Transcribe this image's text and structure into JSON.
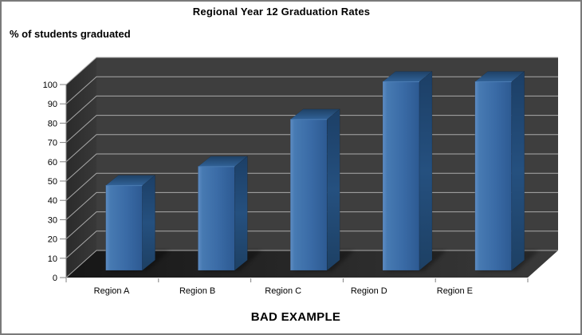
{
  "chart_data": {
    "type": "bar",
    "style": "3d-column",
    "title": "Regional Year 12 Graduation Rates",
    "ylabel": "% of students graduated",
    "xlabel": "",
    "caption": "BAD EXAMPLE",
    "categories": [
      "Region A",
      "Region B",
      "Region C",
      "Region D",
      "Region E"
    ],
    "values": [
      45,
      55,
      80,
      100,
      100
    ],
    "yticks": [
      0,
      10,
      20,
      30,
      40,
      50,
      60,
      70,
      80,
      90,
      100
    ],
    "ylim": [
      0,
      100
    ],
    "grid": true,
    "legend": false,
    "colors": {
      "bar_front_light": "#5e8dc4",
      "bar_front": "#3a6ba6",
      "bar_front_dark": "#2d5a92",
      "bar_side_dark": "#1c3f66",
      "bar_side": "#25507f",
      "bar_top_back": "#1e4165",
      "bar_top_front": "#316298",
      "bar_top_edge": "#4f82ba",
      "back_wall": "#3e3e3e",
      "side_wall_dark": "#2b2b2b",
      "side_wall_light": "#383838",
      "floor_dark": "#161616",
      "floor_light": "#3a3a3a",
      "gridline": "#a9a9a9",
      "axis": "#808080",
      "text": "#000000",
      "frame_border": "#7a7a7a"
    }
  }
}
